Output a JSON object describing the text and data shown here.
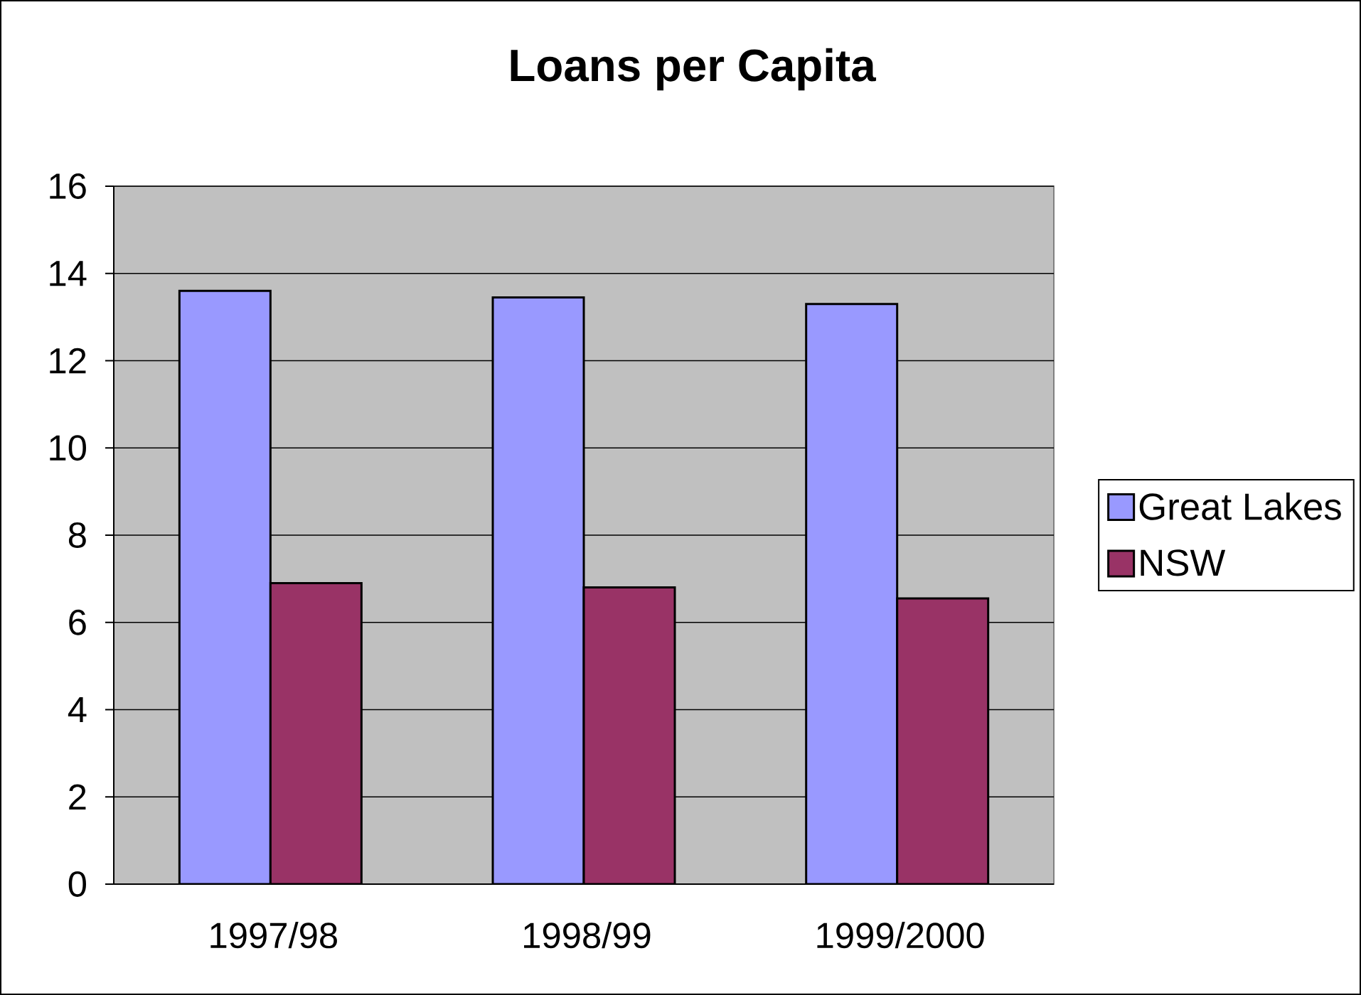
{
  "chart_data": {
    "type": "bar",
    "title": "Loans per Capita",
    "categories": [
      "1997/98",
      "1998/99",
      "1999/2000"
    ],
    "series": [
      {
        "name": "Great Lakes",
        "color": "#9999ff",
        "values": [
          13.6,
          13.45,
          13.3
        ]
      },
      {
        "name": "NSW",
        "color": "#993366",
        "values": [
          6.9,
          6.8,
          6.55
        ]
      }
    ],
    "ylim": [
      0,
      16
    ],
    "yticks": [
      0,
      2,
      4,
      6,
      8,
      10,
      12,
      14,
      16
    ],
    "grid": "y",
    "legend": "right"
  }
}
